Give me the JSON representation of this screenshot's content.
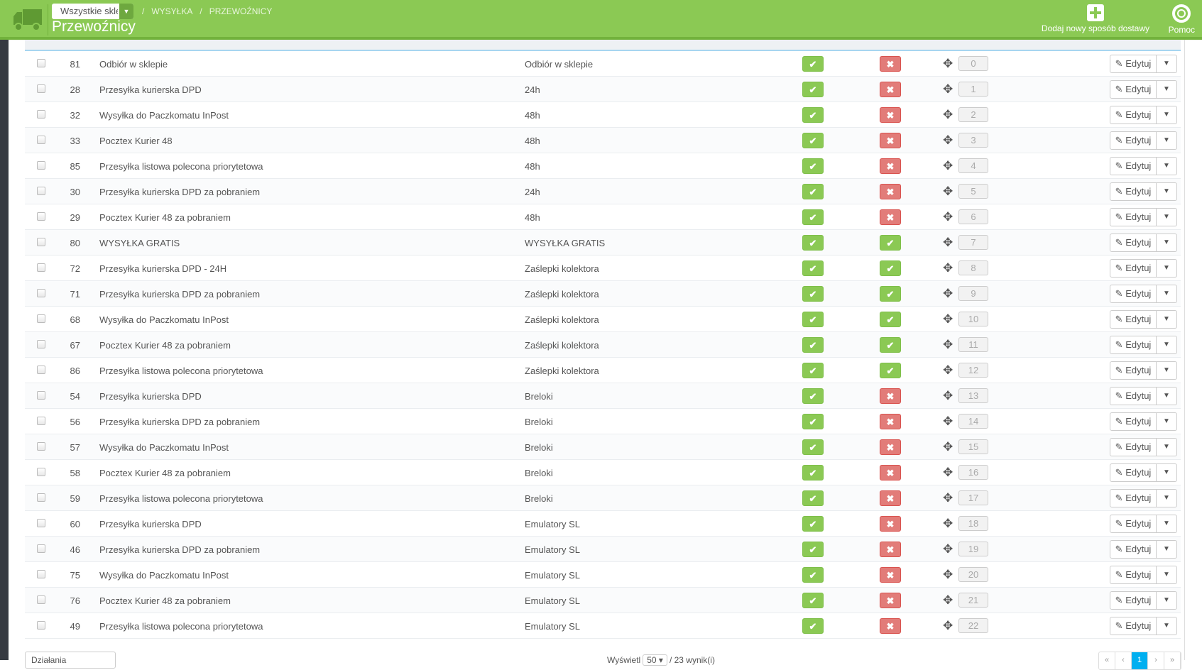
{
  "header": {
    "shop_select": "Wszystkie sklepy",
    "breadcrumb": [
      "WYSYŁKA",
      "PRZEWOŹNICY"
    ],
    "title": "Przewoźnicy",
    "add_button": "Dodaj nowy sposób dostawy",
    "help_button": "Pomoc"
  },
  "colors": {
    "header": "#8bc954",
    "enabled": "#8bc954",
    "disabled": "#e27c79",
    "active_page": "#00aff0"
  },
  "table": {
    "edit_label": "Edytuj",
    "rows": [
      {
        "id": "81",
        "name": "Odbiór w sklepie",
        "delay": "Odbiór w sklepie",
        "active": true,
        "free": false,
        "position": "0"
      },
      {
        "id": "28",
        "name": "Przesyłka kurierska DPD",
        "delay": "24h",
        "active": true,
        "free": false,
        "position": "1"
      },
      {
        "id": "32",
        "name": "Wysyłka do Paczkomatu InPost",
        "delay": "48h",
        "active": true,
        "free": false,
        "position": "2"
      },
      {
        "id": "33",
        "name": "Pocztex Kurier 48",
        "delay": "48h",
        "active": true,
        "free": false,
        "position": "3"
      },
      {
        "id": "85",
        "name": "Przesyłka listowa polecona priorytetowa",
        "delay": "48h",
        "active": true,
        "free": false,
        "position": "4"
      },
      {
        "id": "30",
        "name": "Przesyłka kurierska DPD za pobraniem",
        "delay": "24h",
        "active": true,
        "free": false,
        "position": "5"
      },
      {
        "id": "29",
        "name": "Pocztex Kurier 48 za pobraniem",
        "delay": "48h",
        "active": true,
        "free": false,
        "position": "6"
      },
      {
        "id": "80",
        "name": "WYSYŁKA GRATIS",
        "delay": "WYSYŁKA GRATIS",
        "active": true,
        "free": true,
        "position": "7"
      },
      {
        "id": "72",
        "name": "Przesyłka kurierska DPD - 24H",
        "delay": "Zaślepki kolektora",
        "active": true,
        "free": true,
        "position": "8"
      },
      {
        "id": "71",
        "name": "Przesyłka kurierska DPD za pobraniem",
        "delay": "Zaślepki kolektora",
        "active": true,
        "free": true,
        "position": "9"
      },
      {
        "id": "68",
        "name": "Wysyłka do Paczkomatu InPost",
        "delay": "Zaślepki kolektora",
        "active": true,
        "free": true,
        "position": "10"
      },
      {
        "id": "67",
        "name": "Pocztex Kurier 48 za pobraniem",
        "delay": "Zaślepki kolektora",
        "active": true,
        "free": true,
        "position": "11"
      },
      {
        "id": "86",
        "name": "Przesyłka listowa polecona priorytetowa",
        "delay": "Zaślepki kolektora",
        "active": true,
        "free": true,
        "position": "12"
      },
      {
        "id": "54",
        "name": "Przesyłka kurierska DPD",
        "delay": "Breloki",
        "active": true,
        "free": false,
        "position": "13"
      },
      {
        "id": "56",
        "name": "Przesyłka kurierska DPD za pobraniem",
        "delay": "Breloki",
        "active": true,
        "free": false,
        "position": "14"
      },
      {
        "id": "57",
        "name": "Wysyłka do Paczkomatu InPost",
        "delay": "Breloki",
        "active": true,
        "free": false,
        "position": "15"
      },
      {
        "id": "58",
        "name": "Pocztex Kurier 48 za pobraniem",
        "delay": "Breloki",
        "active": true,
        "free": false,
        "position": "16"
      },
      {
        "id": "59",
        "name": "Przesyłka listowa polecona priorytetowa",
        "delay": "Breloki",
        "active": true,
        "free": false,
        "position": "17"
      },
      {
        "id": "60",
        "name": "Przesyłka kurierska DPD",
        "delay": "Emulatory SL",
        "active": true,
        "free": false,
        "position": "18"
      },
      {
        "id": "46",
        "name": "Przesyłka kurierska DPD za pobraniem",
        "delay": "Emulatory SL",
        "active": true,
        "free": false,
        "position": "19"
      },
      {
        "id": "75",
        "name": "Wysyłka do Paczkomatu InPost",
        "delay": "Emulatory SL",
        "active": true,
        "free": false,
        "position": "20"
      },
      {
        "id": "76",
        "name": "Pocztex Kurier 48 za pobraniem",
        "delay": "Emulatory SL",
        "active": true,
        "free": false,
        "position": "21"
      },
      {
        "id": "49",
        "name": "Przesyłka listowa polecona priorytetowa",
        "delay": "Emulatory SL",
        "active": true,
        "free": false,
        "position": "22"
      }
    ]
  },
  "footer": {
    "bulk_actions": "Działania",
    "show_label": "Wyświetl",
    "per_page": "50",
    "results": "/ 23 wynik(i)",
    "pagination": [
      "«",
      "‹",
      "1",
      "›",
      "»"
    ],
    "current_page": "1"
  }
}
